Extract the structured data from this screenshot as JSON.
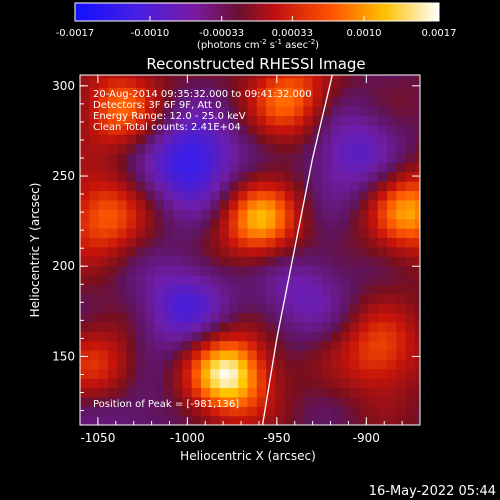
{
  "colorbar": {
    "tick_labels": [
      "-0.0017",
      "-0.0010",
      "-0.00033",
      "0.00033",
      "0.0010",
      "0.0017"
    ],
    "tick_values": [
      -0.0017,
      -0.001,
      -0.00033,
      0.00033,
      0.001,
      0.0017
    ],
    "range": [
      -0.0017,
      0.0017
    ],
    "units_label": "(photons cm",
    "units_sup1": "-2",
    "units_mid": " s",
    "units_sup2": "-1",
    "units_end": " asec",
    "units_sup3": "-2",
    "units_close": ")",
    "colors": [
      "#1010ff",
      "#6a1fd0",
      "#7a1a6a",
      "#c01010",
      "#ff6000",
      "#ffd000",
      "#ffffff"
    ]
  },
  "annotations": {
    "time_range": "20-Aug-2014 09:35:32.000 to 09:41:32.000",
    "detectors": "Detectors: 3F 6F 9F, Att 0",
    "energy_range": "Energy Range: 12.0 - 25.0 keV",
    "clean_counts": "Clean     Total counts: 2.41E+04",
    "peak_position": "Position of Peak = [-981,136]"
  },
  "footer": {
    "timestamp": "16-May-2022 05:44"
  },
  "chart_data": {
    "type": "heatmap",
    "title": "Reconstructed RHESSI Image",
    "xlabel": "Heliocentric X (arcsec)",
    "ylabel": "Heliocentric Y (arcsec)",
    "xlim": [
      -1060,
      -870
    ],
    "ylim": [
      112,
      306
    ],
    "x_ticks": [
      -1050,
      -1000,
      -950,
      -900
    ],
    "x_tick_labels": [
      "-1050",
      "-1000",
      "-950",
      "-900"
    ],
    "y_ticks": [
      150,
      200,
      250,
      300
    ],
    "y_tick_labels": [
      "150",
      "200",
      "250",
      "300"
    ],
    "grid": false,
    "limb_curve": [
      [
        -919,
        306
      ],
      [
        -930,
        260
      ],
      [
        -940,
        210
      ],
      [
        -950,
        160
      ],
      [
        -958,
        112
      ]
    ],
    "sources": [
      {
        "x": -980,
        "y": 138,
        "level": 1.0,
        "label": "peak"
      },
      {
        "x": -962,
        "y": 223,
        "level": 0.75
      },
      {
        "x": -878,
        "y": 228,
        "level": 0.7
      },
      {
        "x": -1050,
        "y": 225,
        "level": 0.55
      },
      {
        "x": -1040,
        "y": 285,
        "level": 0.55
      },
      {
        "x": -945,
        "y": 290,
        "level": 0.6
      },
      {
        "x": -1050,
        "y": 140,
        "level": 0.5
      },
      {
        "x": -895,
        "y": 150,
        "level": 0.5
      }
    ],
    "sinks": [
      {
        "x": -1000,
        "y": 256,
        "level": -0.7
      },
      {
        "x": -1005,
        "y": 175,
        "level": -0.5
      },
      {
        "x": -912,
        "y": 260,
        "level": -0.45
      },
      {
        "x": -940,
        "y": 185,
        "level": -0.35
      },
      {
        "x": -1040,
        "y": 120,
        "level": -0.3
      }
    ]
  }
}
